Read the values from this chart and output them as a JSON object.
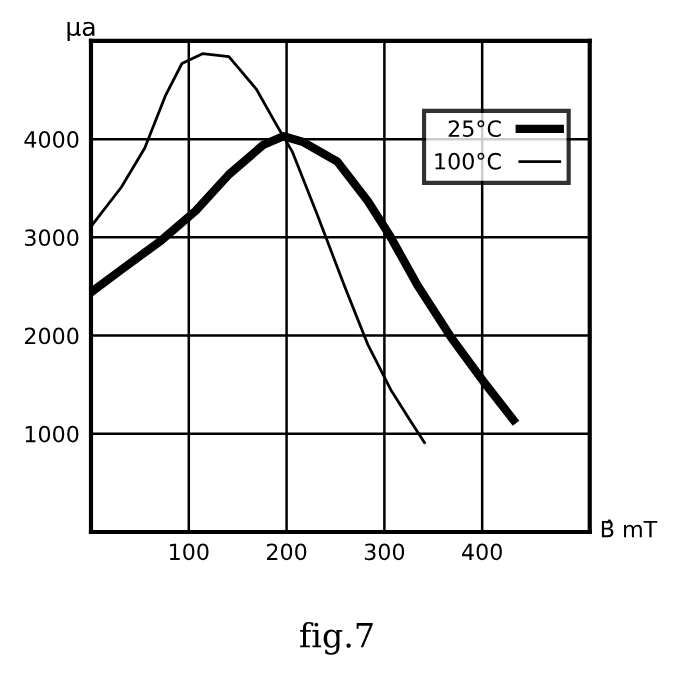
{
  "chart_data": {
    "type": "line",
    "ylabel": "μa",
    "xlabel": "B̂ mT",
    "annotations": [
      "fig.7"
    ],
    "xlim": [
      0,
      510
    ],
    "ylim": [
      0,
      5000
    ],
    "xticks": [
      100,
      200,
      300,
      400
    ],
    "yticks": [
      1000,
      2000,
      3000,
      4000
    ],
    "grid": true,
    "legend": "top right",
    "marker": "none",
    "line_style": "solid",
    "series": [
      {
        "name": "25°C",
        "color": "#000000",
        "x": [
          0,
          31,
          72,
          107,
          141,
          176,
          197,
          217,
          252,
          283,
          306,
          334,
          369,
          403,
          432
        ],
        "values": [
          2440,
          2670,
          2970,
          3270,
          3640,
          3940,
          4030,
          3970,
          3770,
          3370,
          3010,
          2510,
          1970,
          1510,
          1140
        ]
      },
      {
        "name": "100°C",
        "color": "#000000",
        "x": [
          0,
          31,
          55,
          76,
          93,
          114,
          141,
          169,
          190,
          206,
          231,
          259,
          283,
          307,
          328,
          341
        ],
        "values": [
          3110,
          3510,
          3910,
          4440,
          4770,
          4870,
          4840,
          4510,
          4140,
          3870,
          3240,
          2510,
          1910,
          1440,
          1110,
          910
        ]
      }
    ]
  }
}
